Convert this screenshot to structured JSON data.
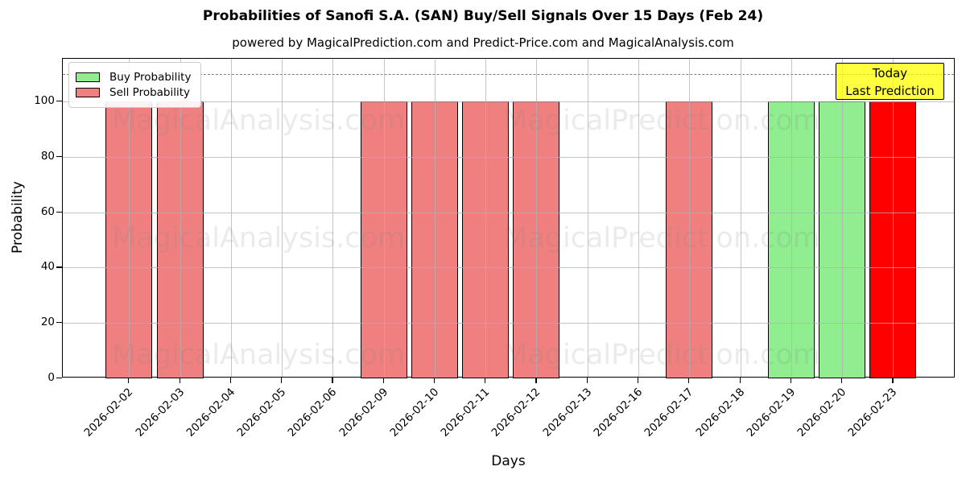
{
  "chart_data": {
    "type": "bar",
    "title": "Probabilities of Sanofi S.A. (SAN) Buy/Sell Signals Over 15 Days (Feb 24)",
    "subtitle": "powered by MagicalPrediction.com and Predict-Price.com and MagicalAnalysis.com",
    "xlabel": "Days",
    "ylabel": "Probability",
    "ylim": [
      0,
      115
    ],
    "yticks": [
      0,
      20,
      40,
      60,
      80,
      100
    ],
    "grid": true,
    "dashed_guide_y": 110,
    "legend_position": "upper left",
    "categories": [
      "2026-02-02",
      "2026-02-03",
      "2026-02-04",
      "2026-02-05",
      "2026-02-06",
      "2026-02-09",
      "2026-02-10",
      "2026-02-11",
      "2026-02-12",
      "2026-02-13",
      "2026-02-16",
      "2026-02-17",
      "2026-02-18",
      "2026-02-19",
      "2026-02-20",
      "2026-02-23"
    ],
    "series": [
      {
        "name": "Buy Probability",
        "color": "#90ee90",
        "values": [
          0,
          0,
          0,
          0,
          0,
          0,
          0,
          0,
          0,
          0,
          0,
          0,
          0,
          100,
          100,
          0
        ]
      },
      {
        "name": "Sell Probability",
        "color": "#f08080",
        "values": [
          100,
          100,
          0,
          0,
          0,
          100,
          100,
          100,
          100,
          0,
          0,
          100,
          0,
          0,
          0,
          0
        ]
      },
      {
        "name": "Today Last Prediction",
        "color": "#ff0000",
        "values": [
          0,
          0,
          0,
          0,
          0,
          0,
          0,
          0,
          0,
          0,
          0,
          0,
          0,
          0,
          0,
          100
        ]
      }
    ],
    "annotation": {
      "line1": "Today",
      "line2": "Last Prediction",
      "bg_color": "#ffff00"
    },
    "watermarks": {
      "left_text": "MagicalAnalysis.com",
      "right_text": "MagicalPrediction.com",
      "left_center_x": 321,
      "right_center_x": 822,
      "row_centers_y": [
        150,
        296,
        441
      ]
    }
  },
  "legend": {
    "items": [
      {
        "label": "Buy Probability",
        "color": "#90ee90"
      },
      {
        "label": "Sell Probability",
        "color": "#f08080"
      }
    ]
  }
}
